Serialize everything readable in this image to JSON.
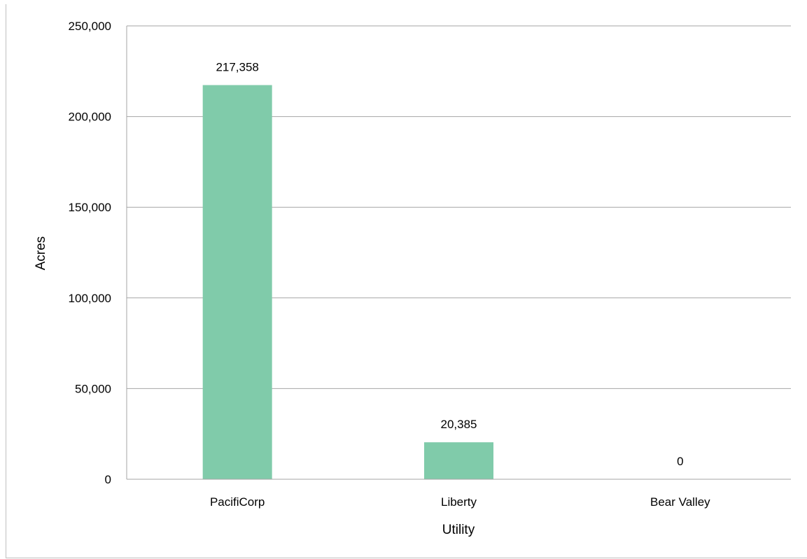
{
  "chart_data": {
    "type": "bar",
    "title": "",
    "xlabel": "Utility",
    "ylabel": "Acres",
    "categories": [
      "PacifiCorp",
      "Liberty",
      "Bear Valley"
    ],
    "values": [
      217358,
      20385,
      0
    ],
    "data_labels": [
      "217,358",
      "20,385",
      "0"
    ],
    "ylim": [
      0,
      250000
    ],
    "yticks": [
      0,
      50000,
      100000,
      150000,
      200000,
      250000
    ],
    "ytick_labels": [
      "0",
      "50,000",
      "100,000",
      "150,000",
      "200,000",
      "250,000"
    ],
    "grid": true,
    "legend": "none",
    "bar_color": "#80cbaa",
    "grid_color": "#a6a6a6"
  }
}
